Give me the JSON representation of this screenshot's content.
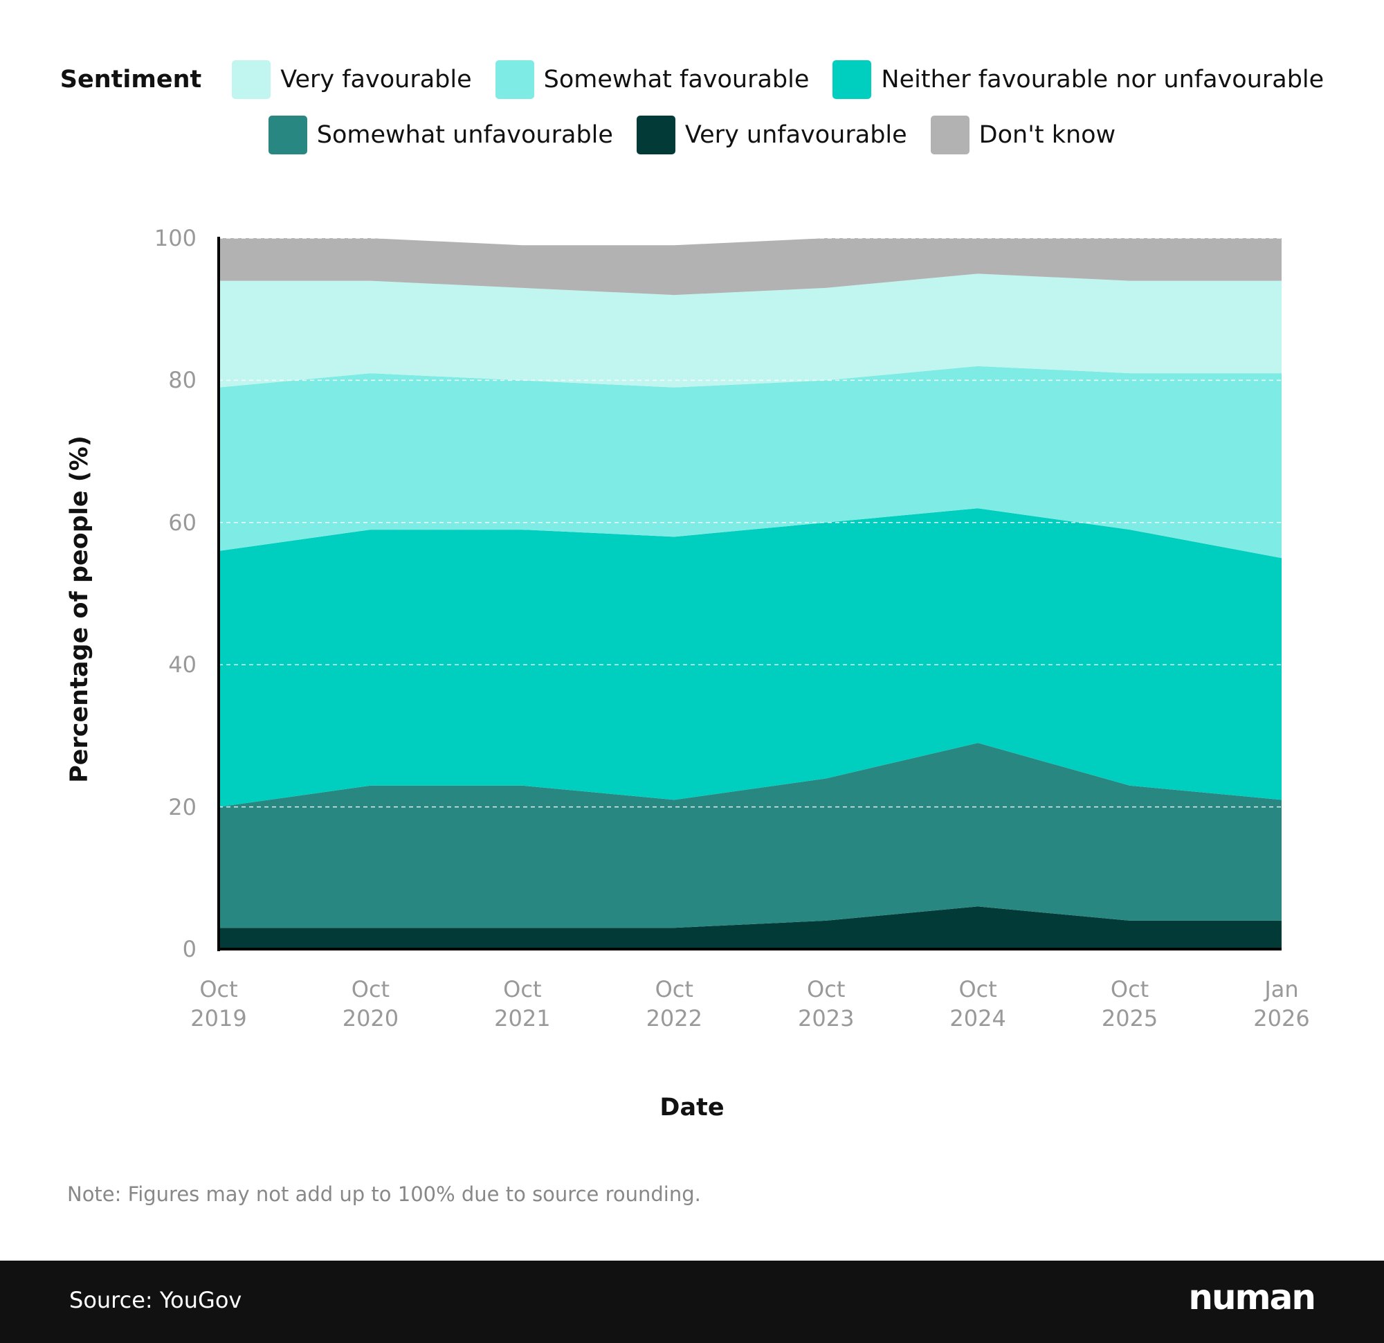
{
  "chart_data": {
    "type": "stacked_area",
    "legend_title": "Sentiment",
    "categories": [
      "Oct 2019",
      "Oct 2020",
      "Oct 2021",
      "Oct 2022",
      "Oct 2023",
      "Oct 2024",
      "Oct 2025",
      "Jan 2026"
    ],
    "series": [
      {
        "name": "Very unfavourable",
        "color": "#013a36",
        "values": [
          3,
          3,
          3,
          3,
          4,
          6,
          4,
          4
        ]
      },
      {
        "name": "Somewhat unfavourable",
        "color": "#288781",
        "values": [
          17,
          20,
          20,
          18,
          20,
          23,
          19,
          17
        ]
      },
      {
        "name": "Neither favourable nor unfavourable",
        "color": "#00cfbf",
        "values": [
          36,
          36,
          36,
          37,
          36,
          33,
          36,
          34
        ]
      },
      {
        "name": "Somewhat favourable",
        "color": "#7eece4",
        "values": [
          23,
          22,
          21,
          21,
          20,
          20,
          22,
          26
        ]
      },
      {
        "name": "Very favourable",
        "color": "#c1f5ef",
        "values": [
          15,
          13,
          13,
          13,
          13,
          13,
          13,
          13
        ]
      },
      {
        "name": "Don't know",
        "color": "#b2b2b2",
        "values": [
          6,
          6,
          6,
          7,
          7,
          5,
          6,
          6
        ]
      }
    ],
    "ylim": [
      0,
      100
    ],
    "yticks": [
      0,
      20,
      40,
      60,
      80,
      100
    ],
    "grid": true,
    "ylabel": "Percentage of people (%)",
    "xlabel": "Date",
    "note": "Note: Figures may not add up to 100% due to source rounding."
  },
  "footer": {
    "source": "Source: YouGov",
    "logo": "numan"
  }
}
